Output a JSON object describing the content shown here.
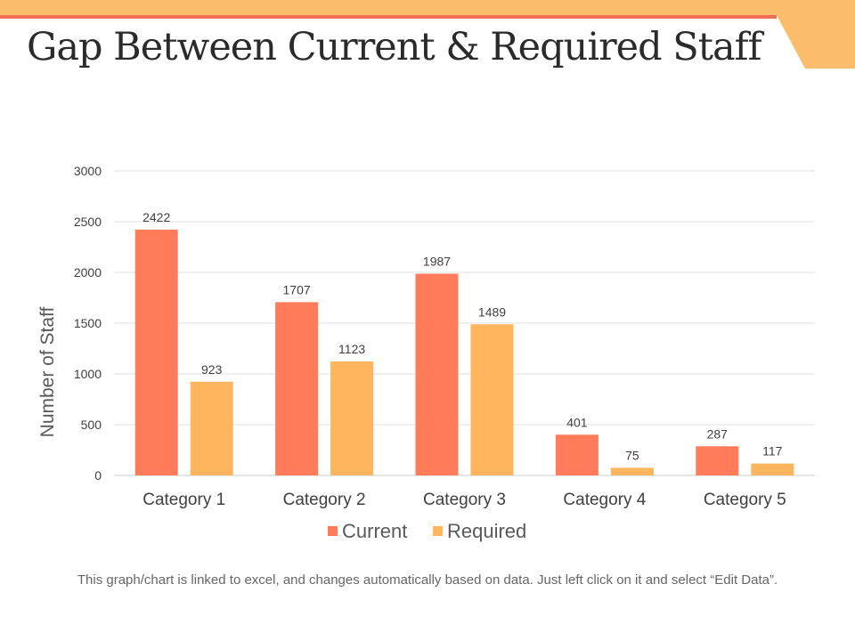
{
  "slide": {
    "title": "Gap Between Current & Required Staff",
    "footnote": "This graph/chart is linked to excel, and changes automatically based on data. Just left click on it and select “Edit Data”."
  },
  "colors": {
    "accent_band": "#fbbd6b",
    "accent_line": "#f26f57",
    "current": "#ff7b5a",
    "required": "#ffb55e",
    "grid": "#e0e0e0",
    "axis_text": "#404040"
  },
  "chart_data": {
    "type": "bar",
    "title": "",
    "xlabel": "",
    "ylabel": "Number of Staff",
    "categories": [
      "Category 1",
      "Category 2",
      "Category 3",
      "Category 4",
      "Category 5"
    ],
    "series": [
      {
        "name": "Current",
        "values": [
          2422,
          1707,
          1987,
          401,
          287
        ]
      },
      {
        "name": "Required",
        "values": [
          923,
          1123,
          1489,
          75,
          117
        ]
      }
    ],
    "ylim": [
      0,
      3000
    ],
    "yticks": [
      0,
      500,
      1000,
      1500,
      2000,
      2500,
      3000
    ],
    "grid": true,
    "legend": "bottom"
  }
}
